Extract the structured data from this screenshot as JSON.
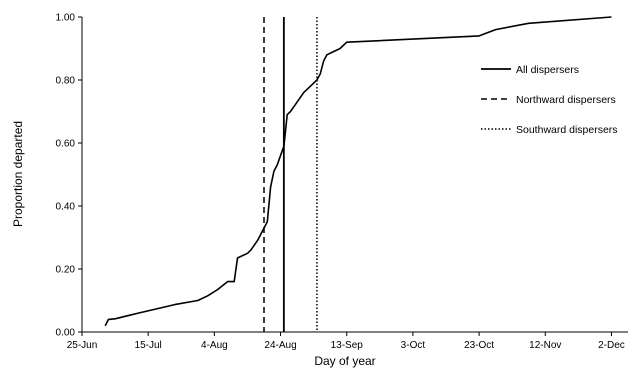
{
  "chart_data": {
    "type": "line",
    "xlabel": "Day of year",
    "ylabel": "Proportion departed",
    "x_ticks": [
      "25-Jun",
      "15-Jul",
      "4-Aug",
      "24-Aug",
      "13-Sep",
      "3-Oct",
      "23-Oct",
      "12-Nov",
      "2-Dec"
    ],
    "xlim": [
      "25-Jun",
      "7-Dec"
    ],
    "y_ticks": [
      "0.00",
      "0.20",
      "0.40",
      "0.60",
      "0.80",
      "1.00"
    ],
    "ylim": [
      0,
      1
    ],
    "grid": false,
    "legend_position": "right",
    "series": [
      {
        "name": "All dispersers",
        "style": "solid",
        "color": "#000000",
        "points": [
          [
            "2-Jul",
            0.02
          ],
          [
            "3-Jul",
            0.04
          ],
          [
            "5-Jul",
            0.042
          ],
          [
            "12-Jul",
            0.06
          ],
          [
            "23-Jul",
            0.087
          ],
          [
            "30-Jul",
            0.1
          ],
          [
            "2-Aug",
            0.115
          ],
          [
            "5-Aug",
            0.135
          ],
          [
            "8-Aug",
            0.16
          ],
          [
            "10-Aug",
            0.16
          ],
          [
            "11-Aug",
            0.235
          ],
          [
            "14-Aug",
            0.25
          ],
          [
            "15-Aug",
            0.26
          ],
          [
            "17-Aug",
            0.29
          ],
          [
            "20-Aug",
            0.35
          ],
          [
            "21-Aug",
            0.46
          ],
          [
            "22-Aug",
            0.51
          ],
          [
            "23-Aug",
            0.53
          ],
          [
            "24-Aug",
            0.56
          ],
          [
            "25-Aug",
            0.59
          ],
          [
            "26-Aug",
            0.69
          ],
          [
            "27-Aug",
            0.7
          ],
          [
            "29-Aug",
            0.73
          ],
          [
            "31-Aug",
            0.76
          ],
          [
            "2-Sep",
            0.78
          ],
          [
            "4-Sep",
            0.8
          ],
          [
            "5-Sep",
            0.82
          ],
          [
            "6-Sep",
            0.86
          ],
          [
            "7-Sep",
            0.88
          ],
          [
            "9-Sep",
            0.89
          ],
          [
            "11-Sep",
            0.9
          ],
          [
            "13-Sep",
            0.92
          ],
          [
            "23-Oct",
            0.94
          ],
          [
            "28-Oct",
            0.96
          ],
          [
            "7-Nov",
            0.98
          ],
          [
            "2-Dec",
            1.0
          ]
        ]
      },
      {
        "name": "Northward dispersers",
        "style": "dashed",
        "color": "#000000",
        "x": "19-Aug"
      },
      {
        "name": "Southward dispersers",
        "style": "dotted",
        "color": "#000000",
        "x": "4-Sep"
      },
      {
        "name": "",
        "style": "solid",
        "color": "#000000",
        "x": "25-Aug"
      }
    ]
  }
}
